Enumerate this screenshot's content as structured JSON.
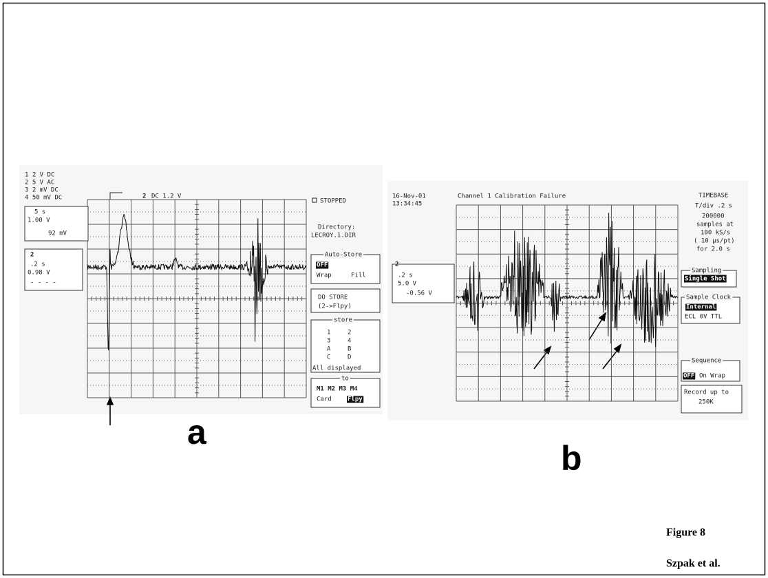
{
  "panel_a": {
    "label": "a",
    "channels": [
      "1  2 V   DC",
      "2  5 V   AC",
      "3  2 mV  DC",
      "4 50 mV  DC"
    ],
    "zoom_box": [
      "5 s",
      "1.00 V",
      "92 mV"
    ],
    "trace_box": {
      "channel": "2",
      "lines": [
        ".2 s",
        "0.98 V",
        "- - - -"
      ]
    },
    "trigger": {
      "channel": "2",
      "setting": "DC 1.2 V"
    },
    "status": "STOPPED",
    "directory": {
      "label": "Directory:",
      "name": "LECROY.1.DIR"
    },
    "auto_store": {
      "title": "Auto-Store",
      "selected": "OFF",
      "options": [
        "Wrap",
        "Fill"
      ]
    },
    "do_store": [
      "DO STORE",
      "(2->Flpy)"
    ],
    "store": {
      "title": "store",
      "items": [
        "1",
        "2",
        "3",
        "4",
        "A",
        "B",
        "C",
        "D"
      ],
      "note": "All displayed"
    },
    "to": {
      "title": "to",
      "memories": "M1 M2 M3 M4",
      "option": "Card",
      "selected": "Flpy"
    }
  },
  "panel_b": {
    "label": "b",
    "date": "16-Nov-01",
    "time": "13:34:45",
    "message": "Channel 1 Calibration Failure",
    "timebase": [
      "TIMEBASE",
      "T/div .2 s",
      "200000",
      "samples at",
      "100 kS/s",
      "( 10 µs/pt)",
      "for 2.0 s"
    ],
    "trace_box": {
      "channel": "2",
      "lines": [
        ".2 s",
        "5.0 V",
        "-0.56 V"
      ]
    },
    "sampling": {
      "title": "Sampling",
      "selected": "Single Shot"
    },
    "sample_clock": {
      "title": "Sample Clock",
      "selected": "Internal",
      "options": "ECL 0V TTL"
    },
    "sequence": {
      "title": "Sequence",
      "selected": "OFF",
      "option": "On Wrap"
    },
    "record": [
      "Record up to",
      "250K"
    ]
  },
  "footer": {
    "figure": "Figure 8",
    "authors": "Szpak et al."
  }
}
